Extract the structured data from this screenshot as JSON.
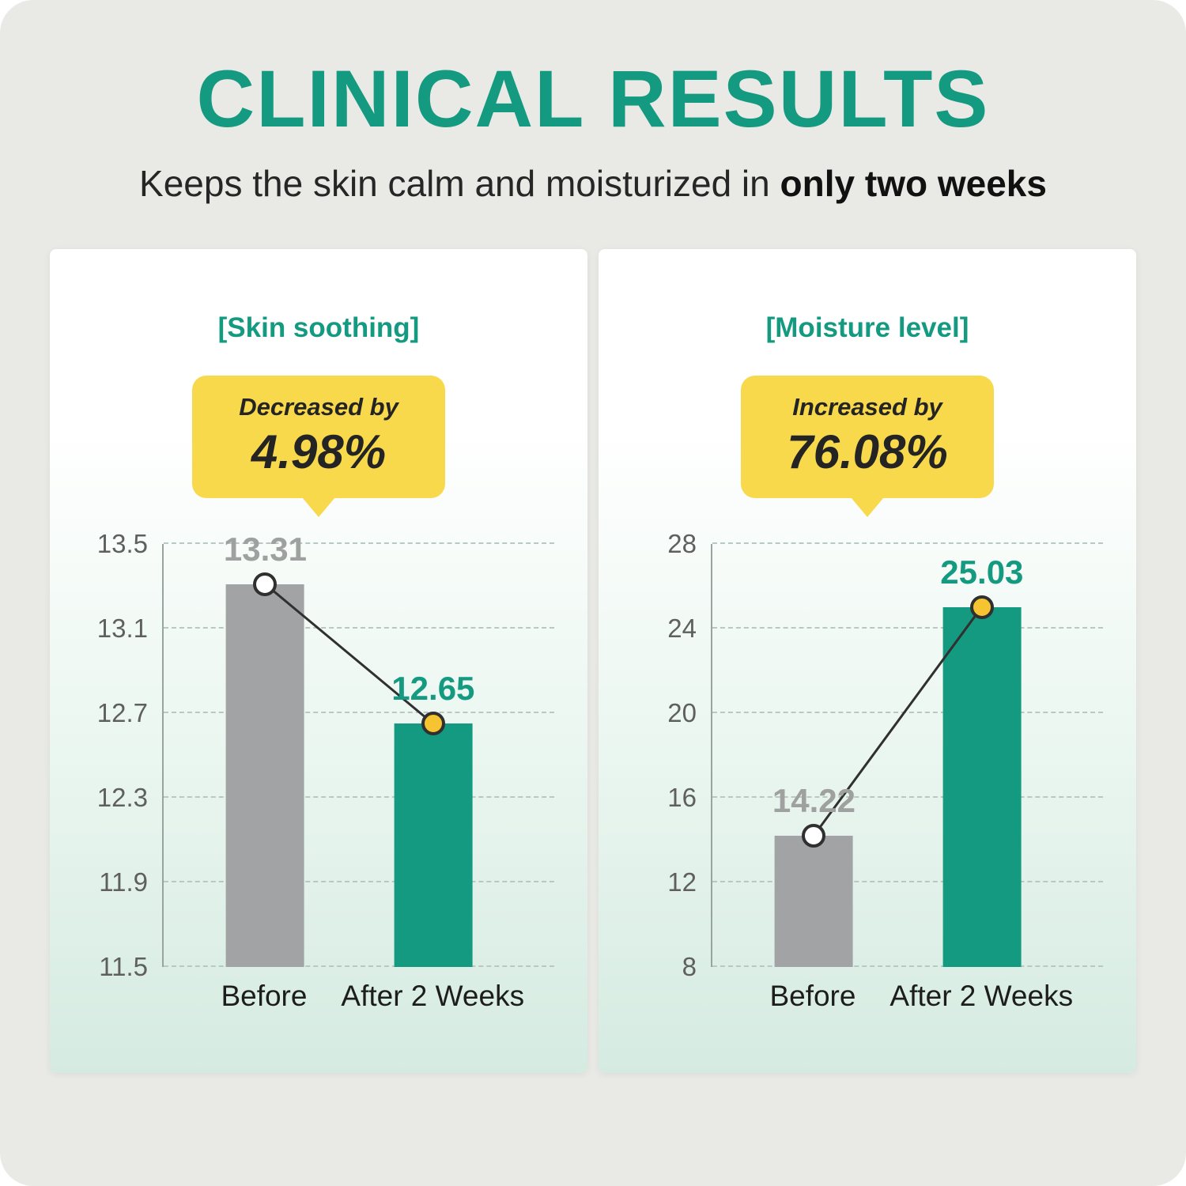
{
  "page": {
    "title": "CLINICAL RESULTS",
    "subtitle": {
      "normal": "Keeps the skin calm and moisturized in ",
      "bold": "only two weeks"
    }
  },
  "colors": {
    "accent_teal": "#149a80",
    "bar_gray": "#a2a3a4",
    "badge_yellow": "#f8d94b",
    "marker_yellow": "#f6c430",
    "marker_white": "#ffffff",
    "trend_line_dark": "#303030",
    "background_gray": "#e9e9e5"
  },
  "chart_data": [
    {
      "type": "bar",
      "title": "[Skin soothing]",
      "badge": {
        "line1": "Decreased by",
        "value": "4.98%"
      },
      "categories": [
        "Before",
        "After 2 Weeks"
      ],
      "values": [
        13.31,
        12.65
      ],
      "value_labels": [
        "13.31",
        "12.65"
      ],
      "yticks": [
        13.5,
        13.1,
        12.7,
        12.3,
        11.9,
        11.5
      ],
      "ylim": [
        11.5,
        13.5
      ],
      "grid": true,
      "legend": "none",
      "bar_colors": [
        "#a2a3a4",
        "#149a80"
      ],
      "label_colors": [
        "#9fa0a0",
        "#149a80"
      ],
      "marker_fills": [
        "#ffffff",
        "#f6c430"
      ]
    },
    {
      "type": "bar",
      "title": "[Moisture level]",
      "badge": {
        "line1": "Increased by",
        "value": "76.08%"
      },
      "categories": [
        "Before",
        "After 2 Weeks"
      ],
      "values": [
        14.22,
        25.03
      ],
      "value_labels": [
        "14.22",
        "25.03"
      ],
      "yticks": [
        28,
        24,
        20,
        16,
        12,
        8
      ],
      "ylim": [
        8,
        28
      ],
      "grid": true,
      "legend": "none",
      "bar_colors": [
        "#a2a3a4",
        "#149a80"
      ],
      "label_colors": [
        "#9fa0a0",
        "#149a80"
      ],
      "marker_fills": [
        "#ffffff",
        "#f6c430"
      ]
    }
  ]
}
